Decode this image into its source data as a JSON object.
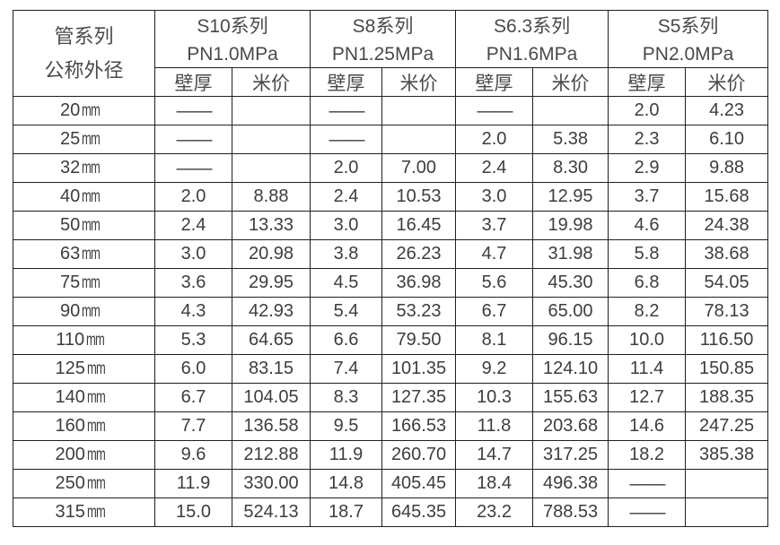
{
  "table": {
    "corner_header": {
      "line1": "管系列",
      "line2": "公称外径"
    },
    "series_groups": [
      {
        "name": "S10系列",
        "pressure": "PN1.0MPa"
      },
      {
        "name": "S8系列",
        "pressure": "PN1.25MPa"
      },
      {
        "name": "S6.3系列",
        "pressure": "PN1.6MPa"
      },
      {
        "name": "S5系列",
        "pressure": "PN2.0MPa"
      }
    ],
    "sub_headers": {
      "wall_thickness": "壁厚",
      "meter_price": "米价"
    },
    "dash": "——",
    "rows": [
      {
        "size": "20",
        "unit": "mm",
        "values": [
          "——",
          "",
          "——",
          "",
          "——",
          "",
          "2.0",
          "4.23"
        ]
      },
      {
        "size": "25",
        "unit": "mm",
        "values": [
          "——",
          "",
          "——",
          "",
          "2.0",
          "5.38",
          "2.3",
          "6.10"
        ]
      },
      {
        "size": "32",
        "unit": "mm",
        "values": [
          "——",
          "",
          "2.0",
          "7.00",
          "2.4",
          "8.30",
          "2.9",
          "9.88"
        ]
      },
      {
        "size": "40",
        "unit": "mm",
        "values": [
          "2.0",
          "8.88",
          "2.4",
          "10.53",
          "3.0",
          "12.95",
          "3.7",
          "15.68"
        ]
      },
      {
        "size": "50",
        "unit": "mm",
        "values": [
          "2.4",
          "13.33",
          "3.0",
          "16.45",
          "3.7",
          "19.98",
          "4.6",
          "24.38"
        ]
      },
      {
        "size": "63",
        "unit": "mm",
        "values": [
          "3.0",
          "20.98",
          "3.8",
          "26.23",
          "4.7",
          "31.98",
          "5.8",
          "38.68"
        ]
      },
      {
        "size": "75",
        "unit": "mm",
        "values": [
          "3.6",
          "29.95",
          "4.5",
          "36.98",
          "5.6",
          "45.30",
          "6.8",
          "54.05"
        ]
      },
      {
        "size": "90",
        "unit": "mm",
        "values": [
          "4.3",
          "42.93",
          "5.4",
          "53.23",
          "6.7",
          "65.00",
          "8.2",
          "78.13"
        ]
      },
      {
        "size": "110",
        "unit": "mm",
        "values": [
          "5.3",
          "64.65",
          "6.6",
          "79.50",
          "8.1",
          "96.15",
          "10.0",
          "116.50"
        ]
      },
      {
        "size": "125",
        "unit": "mm",
        "values": [
          "6.0",
          "83.15",
          "7.4",
          "101.35",
          "9.2",
          "124.10",
          "11.4",
          "150.85"
        ]
      },
      {
        "size": "140",
        "unit": "mm",
        "values": [
          "6.7",
          "104.05",
          "8.3",
          "127.35",
          "10.3",
          "155.63",
          "12.7",
          "188.35"
        ]
      },
      {
        "size": "160",
        "unit": "mm",
        "values": [
          "7.7",
          "136.58",
          "9.5",
          "166.53",
          "11.8",
          "203.68",
          "14.6",
          "247.25"
        ]
      },
      {
        "size": "200",
        "unit": "mm",
        "values": [
          "9.6",
          "212.88",
          "11.9",
          "260.70",
          "14.7",
          "317.25",
          "18.2",
          "385.38"
        ]
      },
      {
        "size": "250",
        "unit": "mm",
        "values": [
          "11.9",
          "330.00",
          "14.8",
          "405.45",
          "18.4",
          "496.38",
          "——",
          ""
        ]
      },
      {
        "size": "315",
        "unit": "mm",
        "values": [
          "15.0",
          "524.13",
          "18.7",
          "645.35",
          "23.2",
          "788.53",
          "——",
          ""
        ]
      }
    ]
  },
  "colors": {
    "background": "#ffffff",
    "border": "#1f1f1f",
    "header_text": "#4a4a4a",
    "data_text": "#3d3d3d"
  }
}
